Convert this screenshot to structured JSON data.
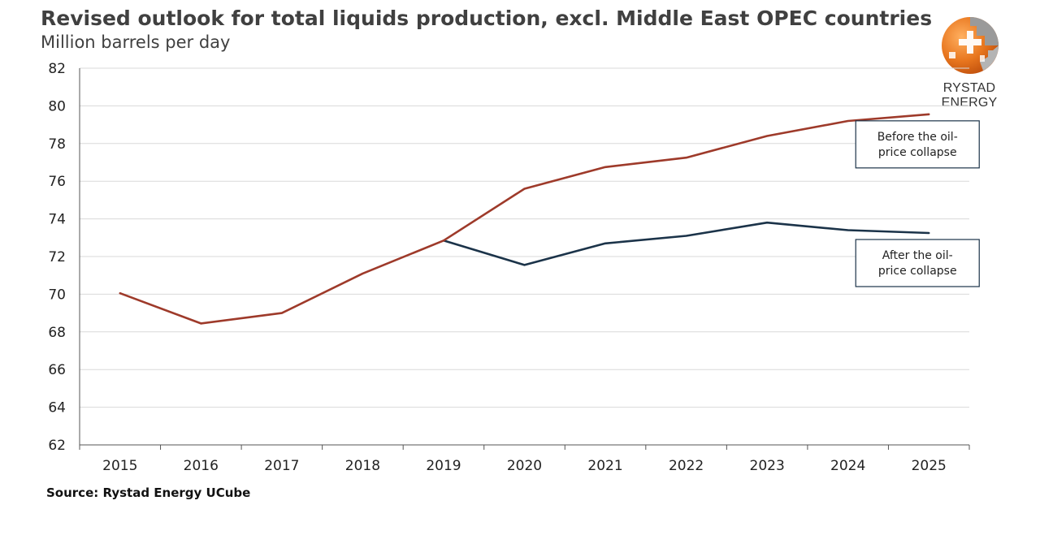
{
  "chart_data": {
    "type": "line",
    "title": "Revised outlook for total liquids production, excl. Middle East OPEC countries",
    "subtitle": "Million barrels per day",
    "x": [
      "2015",
      "2016",
      "2017",
      "2018",
      "2019",
      "2020",
      "2021",
      "2022",
      "2023",
      "2024",
      "2025"
    ],
    "ylim": [
      62,
      82
    ],
    "yticks": [
      "82",
      "80",
      "78",
      "76",
      "74",
      "72",
      "70",
      "68",
      "66",
      "64",
      "62"
    ],
    "grid": true,
    "series": [
      {
        "name": "Before the oil-price collapse",
        "label_lines": [
          "Before the oil-",
          "price collapse"
        ],
        "color": "#9e3a2a",
        "values": [
          70.05,
          68.45,
          69.0,
          71.1,
          72.85,
          75.6,
          76.75,
          77.25,
          78.4,
          79.2,
          79.55
        ]
      },
      {
        "name": "After the oil-price collapse",
        "label_lines": [
          "After the oil-",
          "price collapse"
        ],
        "color": "#1b3349",
        "values": [
          null,
          null,
          null,
          null,
          72.85,
          71.55,
          72.7,
          73.1,
          73.8,
          73.4,
          73.25
        ]
      }
    ]
  },
  "source": "Source: Rystad Energy UCube",
  "logo": {
    "text": "RYSTAD ENERGY",
    "icon": "rystad-globe-logo",
    "colors": {
      "orange": "#e8761e",
      "grey": "#8a8a8a"
    }
  }
}
